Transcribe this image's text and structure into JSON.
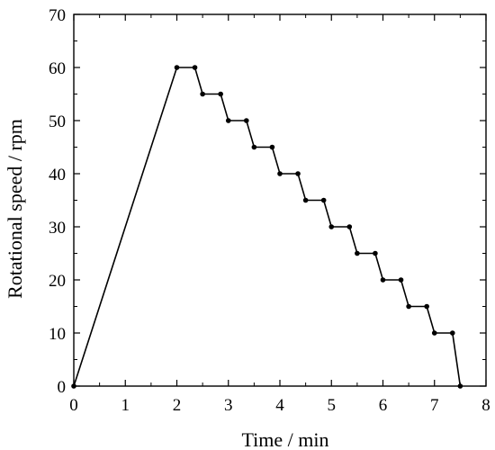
{
  "chart_data": {
    "type": "line",
    "title": "",
    "xlabel": "Time / min",
    "ylabel": "Rotational speed / rpm",
    "xlim": [
      0,
      8
    ],
    "ylim": [
      0,
      70
    ],
    "xticks": [
      "0",
      "1",
      "2",
      "3",
      "4",
      "5",
      "6",
      "7",
      "8"
    ],
    "yticks": [
      "0",
      "10",
      "20",
      "30",
      "40",
      "50",
      "60",
      "70"
    ],
    "grid": false,
    "legend": "none",
    "line_color": "#000000",
    "series": [
      {
        "x": [
          0,
          2.0,
          2.35,
          2.5,
          2.85,
          3.0,
          3.35,
          3.5,
          3.85,
          4.0,
          4.35,
          4.5,
          4.85,
          5.0,
          5.35,
          5.5,
          5.85,
          6.0,
          6.35,
          6.5,
          6.85,
          7.0,
          7.35,
          7.5
        ],
        "y": [
          0,
          60,
          60,
          55,
          55,
          50,
          50,
          45,
          45,
          40,
          40,
          35,
          35,
          30,
          30,
          25,
          25,
          20,
          20,
          15,
          15,
          10,
          10,
          0
        ]
      }
    ]
  }
}
